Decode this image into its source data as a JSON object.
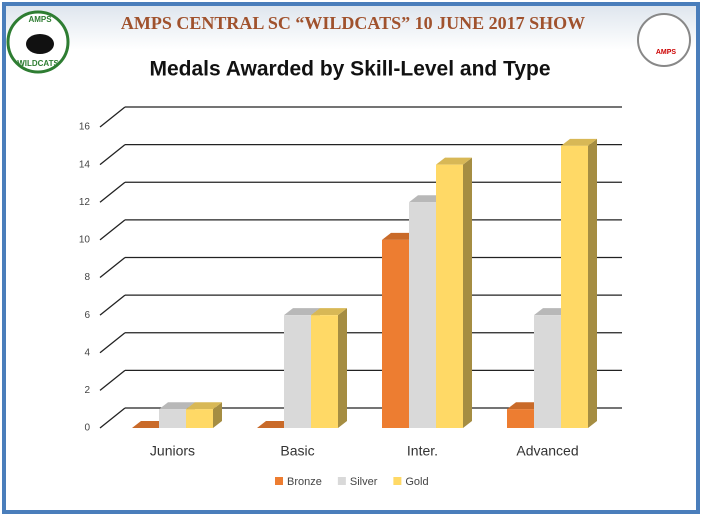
{
  "header": {
    "title": "AMPS CENTRAL SC “WILDCATS” 10 JUNE 2017 SHOW",
    "left_logo": [
      "AMPS",
      "WILDCATS"
    ],
    "right_logo": "AMPS"
  },
  "chart_data": {
    "type": "bar3d",
    "title": "Medals Awarded by Skill-Level and Type",
    "categories": [
      "Juniors",
      "Basic",
      "Inter.",
      "Advanced"
    ],
    "series": [
      {
        "name": "Bronze",
        "color": "#ED7D31",
        "values": [
          0,
          0,
          10,
          1
        ]
      },
      {
        "name": "Silver",
        "color": "#D9D9D9",
        "values": [
          1,
          6,
          12,
          6
        ]
      },
      {
        "name": "Gold",
        "color": "#FFD966",
        "values": [
          1,
          6,
          14,
          15
        ]
      }
    ],
    "ylim": [
      0,
      16
    ],
    "yticks": [
      0,
      2,
      4,
      6,
      8,
      10,
      12,
      14,
      16
    ],
    "grid": true,
    "legend": "bottom"
  }
}
